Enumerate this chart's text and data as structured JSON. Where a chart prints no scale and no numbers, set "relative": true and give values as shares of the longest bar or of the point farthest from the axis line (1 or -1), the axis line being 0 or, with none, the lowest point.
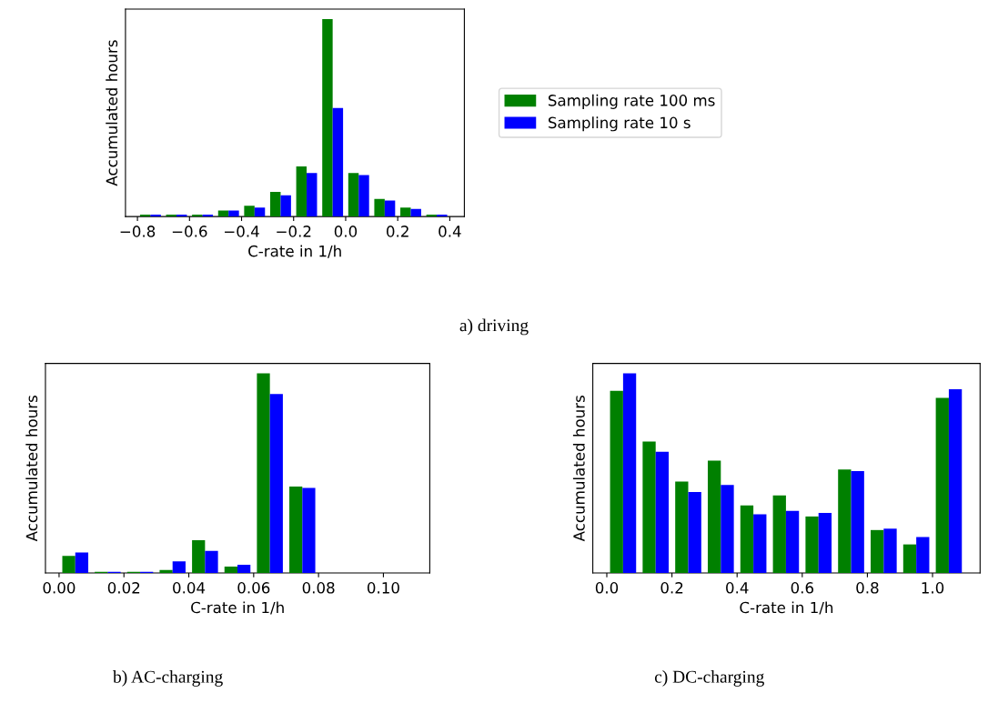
{
  "chart_data": [
    {
      "type": "bar",
      "title": "a) driving",
      "xlabel": "C-rate in 1/h",
      "ylabel": "Accumulated hours",
      "relative": true,
      "xlim": [
        -0.846,
        0.456
      ],
      "xticks": [
        {
          "value": -0.8,
          "label": "−0.8"
        },
        {
          "value": -0.6,
          "label": "−0.6"
        },
        {
          "value": -0.4,
          "label": "−0.4"
        },
        {
          "value": -0.2,
          "label": "−0.2"
        },
        {
          "value": 0.0,
          "label": "0.0"
        },
        {
          "value": 0.2,
          "label": "0.2"
        },
        {
          "value": 0.4,
          "label": "0.4"
        }
      ],
      "tick_labels": "x",
      "grid": false,
      "legend": "right",
      "series": [
        {
          "name": "Sampling rate 100 ms",
          "color": "#008000",
          "x": [
            -0.77,
            -0.67,
            -0.57,
            -0.47,
            -0.37,
            -0.27,
            -0.17,
            -0.07,
            0.03,
            0.13,
            0.23,
            0.33
          ],
          "values": [
            0.01,
            0.01,
            0.01,
            0.03,
            0.054,
            0.125,
            0.254,
            1,
            0.22,
            0.089,
            0.045,
            0.01
          ]
        },
        {
          "name": "Sampling rate 10 s",
          "color": "#0000ff",
          "x": [
            -0.73,
            -0.63,
            -0.53,
            -0.43,
            -0.33,
            -0.23,
            -0.13,
            -0.03,
            0.07,
            0.17,
            0.27,
            0.37
          ],
          "values": [
            0.01,
            0.01,
            0.01,
            0.03,
            0.045,
            0.107,
            0.22,
            0.55,
            0.21,
            0.081,
            0.038,
            0.01
          ]
        }
      ]
    },
    {
      "type": "bar",
      "title": "b) AC-charging",
      "xlabel": "C-rate in 1/h",
      "ylabel": "Accumulated hours",
      "relative": true,
      "xlim": [
        -0.0042,
        0.1143
      ],
      "xticks": [
        {
          "value": 0.0,
          "label": "0.00"
        },
        {
          "value": 0.02,
          "label": "0.02"
        },
        {
          "value": 0.04,
          "label": "0.04"
        },
        {
          "value": 0.06,
          "label": "0.06"
        },
        {
          "value": 0.08,
          "label": "0.08"
        },
        {
          "value": 0.1,
          "label": "0.10"
        }
      ],
      "tick_labels": "x",
      "grid": false,
      "series": [
        {
          "color": "#008000",
          "x": [
            0.003,
            0.013,
            0.023,
            0.033,
            0.043,
            0.053,
            0.063,
            0.073
          ],
          "values": [
            0.086,
            0.006,
            0.006,
            0.015,
            0.164,
            0.032,
            1,
            0.433
          ]
        },
        {
          "color": "#0000ff",
          "x": [
            0.007,
            0.017,
            0.027,
            0.037,
            0.047,
            0.057,
            0.067,
            0.077
          ],
          "values": [
            0.103,
            0.006,
            0.006,
            0.058,
            0.11,
            0.041,
            0.897,
            0.426
          ]
        }
      ]
    },
    {
      "type": "bar",
      "title": "c) DC-charging",
      "xlabel": "C-rate in 1/h",
      "ylabel": "Accumulated hours",
      "relative": true,
      "xlim": [
        -0.043,
        1.146
      ],
      "xticks": [
        {
          "value": 0.0,
          "label": "0.0"
        },
        {
          "value": 0.2,
          "label": "0.2"
        },
        {
          "value": 0.4,
          "label": "0.4"
        },
        {
          "value": 0.6,
          "label": "0.6"
        },
        {
          "value": 0.8,
          "label": "0.8"
        },
        {
          "value": 1.0,
          "label": "1.0"
        }
      ],
      "tick_labels": "x",
      "grid": false,
      "series": [
        {
          "color": "#008000",
          "x": [
            0.03,
            0.13,
            0.23,
            0.33,
            0.43,
            0.53,
            0.63,
            0.73,
            0.83,
            0.93,
            1.03
          ],
          "values": [
            0.913,
            0.659,
            0.458,
            0.563,
            0.338,
            0.388,
            0.283,
            0.519,
            0.215,
            0.143,
            0.878
          ]
        },
        {
          "color": "#0000ff",
          "x": [
            0.07,
            0.17,
            0.27,
            0.37,
            0.47,
            0.57,
            0.67,
            0.77,
            0.87,
            0.97,
            1.07
          ],
          "values": [
            1,
            0.607,
            0.406,
            0.441,
            0.294,
            0.311,
            0.301,
            0.511,
            0.222,
            0.18,
            0.921
          ]
        }
      ]
    }
  ]
}
